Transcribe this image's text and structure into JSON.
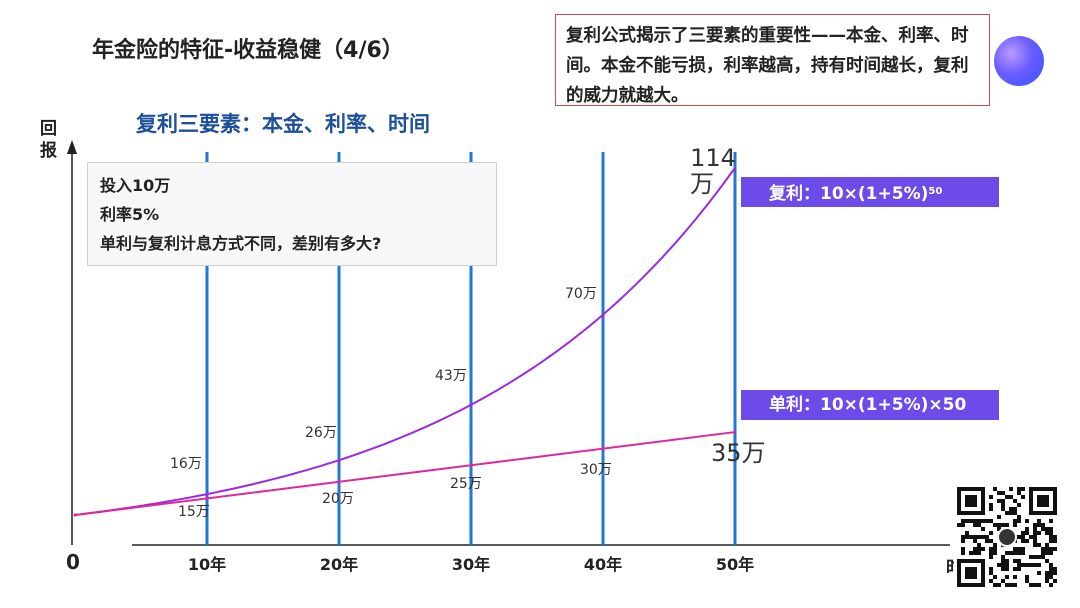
{
  "title": "年金险的特征-收益稳健（4/6）",
  "note": "复利公式揭示了三要素的重要性——本金、利率、时间。本金不能亏损，利率越高，持有时间越长，复利的威力就越大。",
  "subtitle": "复利三要素：本金、利率、时间",
  "info_lines": [
    "投入10万",
    "利率5%",
    "单利与复利计息方式不同，差别有多大?"
  ],
  "y_axis_label": "回报",
  "origin_label": "0",
  "x_axis_label_fragment": "时",
  "compound_tag": {
    "text": "复利：10×(1+5%)",
    "exponent": "50"
  },
  "simple_tag": {
    "text": "单利：10×(1+5%)×50"
  },
  "final_compound_label": {
    "line1": "114",
    "line2": "万"
  },
  "final_simple_label": "35万",
  "chart_data": {
    "type": "line",
    "title": "复利三要素：本金、利率、时间",
    "xlabel": "时间",
    "ylabel": "回报",
    "x": [
      0,
      10,
      20,
      30,
      40,
      50
    ],
    "categories": [
      "10年",
      "20年",
      "30年",
      "40年",
      "50年"
    ],
    "xlim": [
      0,
      50
    ],
    "ylim": [
      0,
      120
    ],
    "series": [
      {
        "name": "复利",
        "color": "#9b2be0",
        "values": [
          10,
          16,
          26,
          43,
          70,
          114
        ],
        "labels": [
          "",
          "16万",
          "26万",
          "43万",
          "70万",
          "114万"
        ]
      },
      {
        "name": "单利",
        "color": "#e0269a",
        "values": [
          10,
          15,
          20,
          25,
          30,
          35
        ],
        "labels": [
          "",
          "15万",
          "20万",
          "25万",
          "30万",
          "35万"
        ]
      }
    ],
    "vertical_lines": [
      10,
      20,
      30,
      40,
      50
    ],
    "vertical_line_color": "#1f77d8"
  },
  "colors": {
    "accent_blue": "#1d4f9a",
    "tag_purple": "#6c4be8",
    "note_border": "#d94a4a"
  }
}
